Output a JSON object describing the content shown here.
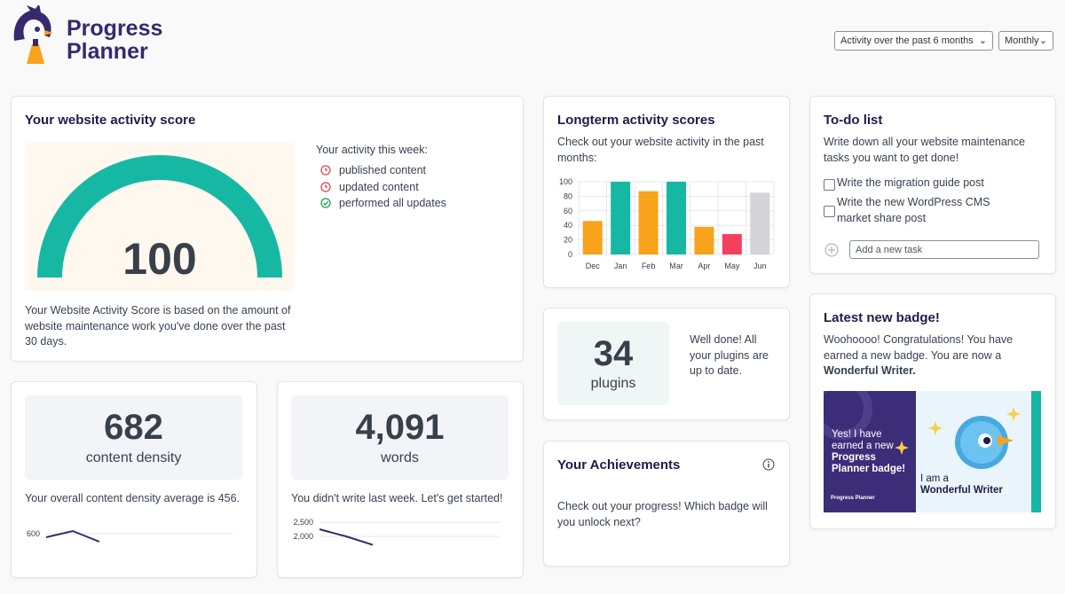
{
  "header": {
    "logo": [
      "Progress",
      "Planner"
    ],
    "filters": [
      "Activity over the past 6 months",
      "Monthly"
    ]
  },
  "activity_score": {
    "title": "Your website activity score",
    "score": "100",
    "week_title": "Your activity this week:",
    "items": [
      {
        "label": "published content",
        "status": "pending"
      },
      {
        "label": "updated content",
        "status": "pending"
      },
      {
        "label": "performed all updates",
        "status": "done"
      }
    ],
    "description": "Your Website Activity Score is based on the amount of website maintenance work you've done over the past 30 days."
  },
  "longterm": {
    "title": "Longterm activity scores",
    "description": "Check out your website activity in the past months:",
    "chart": {
      "type": "bar",
      "categories": [
        "Dec",
        "Jan",
        "Feb",
        "Mar",
        "Apr",
        "May",
        "Jun"
      ],
      "values": [
        46,
        100,
        87,
        100,
        38,
        28,
        85
      ],
      "colors": [
        "#f9a21c",
        "#16b8a4",
        "#f9a21c",
        "#16b8a4",
        "#f9a21c",
        "#f43f5e",
        "#d4d4d8"
      ],
      "ylim": [
        0,
        100
      ],
      "yticks": [
        0,
        20,
        40,
        60,
        80,
        100
      ],
      "grid": true
    }
  },
  "todo": {
    "title": "To-do list",
    "description": "Write down all your website maintenance tasks you want to get done!",
    "tasks": [
      "Write the migration guide post",
      "Write the new WordPress CMS market share post"
    ],
    "input_placeholder": "Add a new task"
  },
  "content_density": {
    "value": "682",
    "label": "content density",
    "text": "Your overall content density average is 456.",
    "chart": {
      "type": "line",
      "values": [
        584,
        612,
        564
      ],
      "color": "#38296d",
      "ylim": [
        400,
        700
      ],
      "yticks": [
        600
      ],
      "grid": true
    }
  },
  "words": {
    "value": "4,091",
    "label": "words",
    "text": "You didn't write last week. Let's get started!",
    "chart": {
      "type": "line",
      "values": [
        2250,
        2000,
        1700
      ],
      "color": "#38296d",
      "ylim": [
        0,
        3000
      ],
      "yticks": [
        {
          "value": 2500,
          "label": "2,500"
        },
        {
          "value": 2000,
          "label": "2,000"
        }
      ],
      "grid": true
    }
  },
  "plugins": {
    "value": "34",
    "label": "plugins",
    "text": "Well done! All your plugins are up to date."
  },
  "achievements": {
    "title": "Your Achievements",
    "text": "Check out your progress! Which badge will you unlock next?"
  },
  "badge": {
    "title": "Latest new badge!",
    "text": "Woohoooo! Congratulations! You have earned a new badge. You are now a",
    "badge_name": "Wonderful Writer.",
    "image": {
      "intro": "Yes! I have earned a new",
      "highlight": "Progress Planner badge!",
      "caption": "I am a",
      "name": "Wonderful Writer",
      "brand": "Progress Planner"
    }
  }
}
